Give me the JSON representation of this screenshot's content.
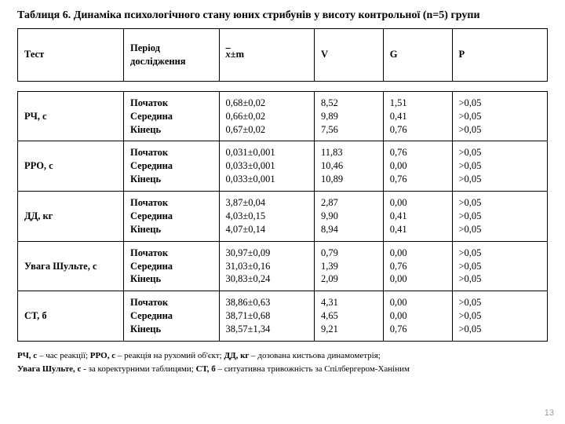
{
  "title": "Таблиця 6. Динаміка психологічного стану юних стрибунів у висоту контрольної (n=5) групи",
  "page_number": "13",
  "columns": {
    "test": "Тест",
    "period": "Період дослідження",
    "xm_suffix": "±m",
    "v": "V",
    "g": "G",
    "p": "P"
  },
  "period_labels": [
    "Початок",
    "Середина",
    "Кінець"
  ],
  "rows": [
    {
      "test": "РЧ, с",
      "xm": [
        "0,68±0,02",
        "0,66±0,02",
        "0,67±0,02"
      ],
      "v": [
        "8,52",
        "9,89",
        "7,56"
      ],
      "g": [
        "1,51",
        "0,41",
        "0,76"
      ],
      "p": [
        ">0,05",
        ">0,05",
        ">0,05"
      ]
    },
    {
      "test": "РРО, с",
      "xm": [
        "0,031±0,001",
        "0,033±0,001",
        "0,033±0,001"
      ],
      "v": [
        "11,83",
        "10,46",
        "10,89"
      ],
      "g": [
        "0,76",
        "0,00",
        "0,76"
      ],
      "p": [
        ">0,05",
        ">0,05",
        ">0,05"
      ]
    },
    {
      "test": "ДД, кг",
      "xm": [
        "3,87±0,04",
        "4,03±0,15",
        "4,07±0,14"
      ],
      "v": [
        "2,87",
        "9,90",
        "8,94"
      ],
      "g": [
        "0,00",
        "0,41",
        "0,41"
      ],
      "p": [
        ">0,05",
        ">0,05",
        ">0,05"
      ]
    },
    {
      "test": "Увага Шульте, с",
      "xm": [
        "30,97±0,09",
        "31,03±0,16",
        "30,83±0,24"
      ],
      "v": [
        "0,79",
        "1,39",
        "2,09"
      ],
      "g": [
        "0,00",
        "0,76",
        "0,00"
      ],
      "p": [
        ">0,05",
        ">0,05",
        ">0,05"
      ]
    },
    {
      "test": "СТ, б",
      "xm": [
        "38,86±0,63",
        "38,71±0,68",
        "38,57±1,34"
      ],
      "v": [
        "4,31",
        "4,65",
        "9,21"
      ],
      "g": [
        "0,00",
        "0,00",
        "0,76"
      ],
      "p": [
        ">0,05",
        ">0,05",
        ">0,05"
      ]
    }
  ],
  "legend": {
    "l1_b1": "РЧ, с",
    "l1_t1": " – час реакції; ",
    "l1_b2": "РРО, с",
    "l1_t2": " – реакція на рухомий об'єкт; ",
    "l1_b3": "ДД, кг",
    "l1_t3": " – дозована кистьова динамометрія;",
    "l2_b1": "Увага Шульте, с - ",
    "l2_t1": "за коректурними таблицями; ",
    "l2_b2": "СТ, б",
    "l2_t2": " – ситуативна тривожність за Спілбергером-Ханіним"
  }
}
